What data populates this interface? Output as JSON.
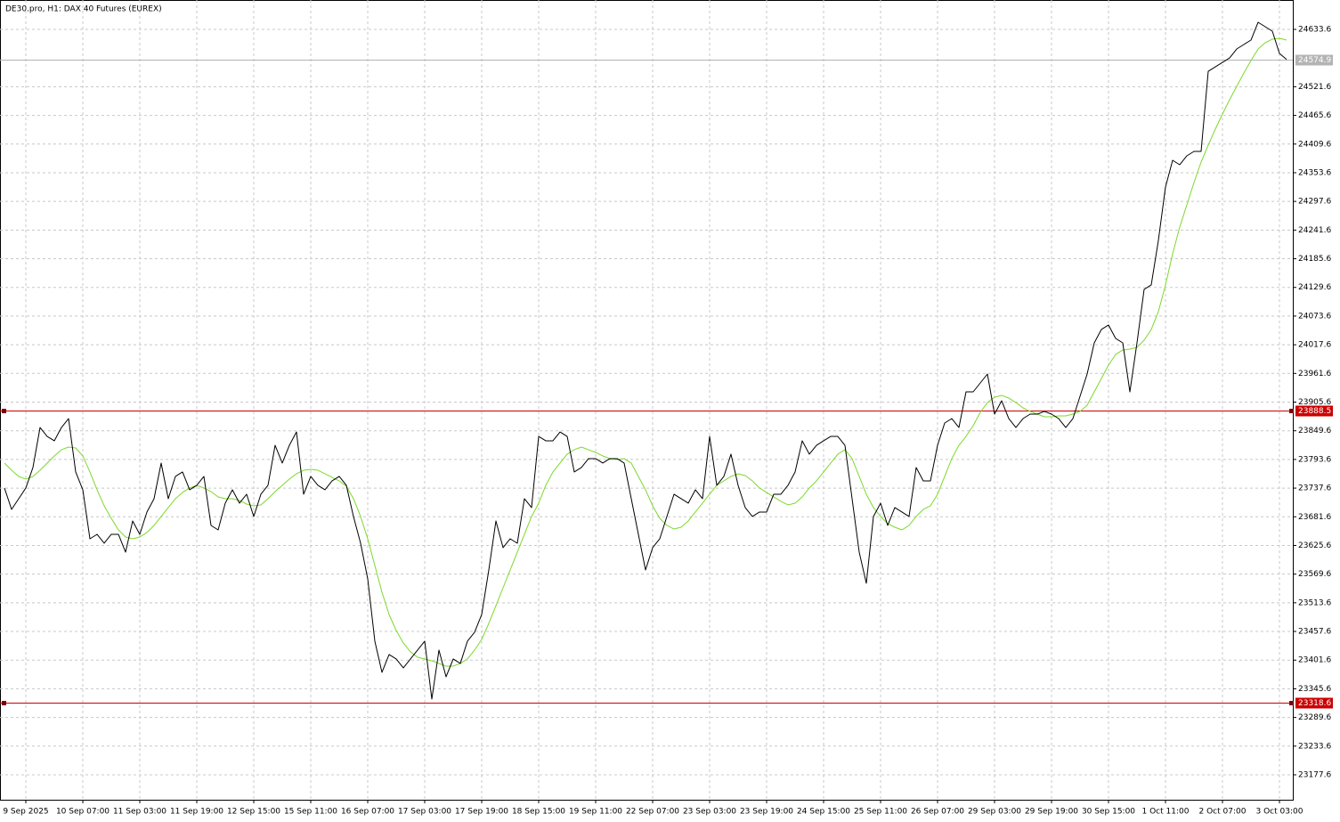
{
  "chart_data": {
    "type": "line",
    "title": "DE30.pro, H1:  DAX 40 Futures (EUREX)",
    "categories": [
      null,
      null,
      null,
      "9 Sep 2025",
      null,
      null,
      null,
      null,
      null,
      null,
      null,
      "10 Sep 07:00",
      null,
      null,
      null,
      null,
      null,
      null,
      null,
      "11 Sep 03:00",
      null,
      null,
      null,
      null,
      null,
      null,
      null,
      "11 Sep 19:00",
      null,
      null,
      null,
      null,
      null,
      null,
      null,
      "12 Sep 15:00",
      null,
      null,
      null,
      null,
      null,
      null,
      null,
      "15 Sep 11:00",
      null,
      null,
      null,
      null,
      null,
      null,
      null,
      "16 Sep 07:00",
      null,
      null,
      null,
      null,
      null,
      null,
      null,
      "17 Sep 03:00",
      null,
      null,
      null,
      null,
      null,
      null,
      null,
      "17 Sep 19:00",
      null,
      null,
      null,
      null,
      null,
      null,
      null,
      "18 Sep 15:00",
      null,
      null,
      null,
      null,
      null,
      null,
      null,
      "19 Sep 11:00",
      null,
      null,
      null,
      null,
      null,
      null,
      null,
      "22 Sep 07:00",
      null,
      null,
      null,
      null,
      null,
      null,
      null,
      "23 Sep 03:00",
      null,
      null,
      null,
      null,
      null,
      null,
      null,
      "23 Sep 19:00",
      null,
      null,
      null,
      null,
      null,
      null,
      null,
      "24 Sep 15:00",
      null,
      null,
      null,
      null,
      null,
      null,
      null,
      "25 Sep 11:00",
      null,
      null,
      null,
      null,
      null,
      null,
      null,
      "26 Sep 07:00",
      null,
      null,
      null,
      null,
      null,
      null,
      null,
      "29 Sep 03:00",
      null,
      null,
      null,
      null,
      null,
      null,
      null,
      "29 Sep 19:00",
      null,
      null,
      null,
      null,
      null,
      null,
      null,
      "30 Sep 15:00",
      null,
      null,
      null,
      null,
      null,
      null,
      null,
      "1 Oct 11:00",
      null,
      null,
      null,
      null,
      null,
      null,
      null,
      "2 Oct 07:00",
      null,
      null,
      null,
      null,
      null,
      null,
      null,
      "3 Oct 03:00",
      null
    ],
    "series": [
      {
        "color": "#000000",
        "values": [
          23737.8,
          23696.0,
          23716.9,
          23737.8,
          23777.8,
          23856.0,
          23838.6,
          23830.0,
          23856.0,
          23873.4,
          23769.1,
          23734.3,
          23638.6,
          23647.3,
          23629.9,
          23647.3,
          23647.3,
          23612.5,
          23673.4,
          23647.3,
          23690.8,
          23716.9,
          23786.5,
          23716.9,
          23760.4,
          23769.1,
          23734.3,
          23743.0,
          23760.4,
          23664.7,
          23656.0,
          23708.2,
          23734.3,
          23708.2,
          23725.6,
          23682.1,
          23725.6,
          23743.0,
          23821.2,
          23786.5,
          23821.2,
          23847.3,
          23725.6,
          23760.4,
          23743.0,
          23734.3,
          23751.7,
          23760.4,
          23743.0,
          23682.1,
          23629.9,
          23560.3,
          23438.6,
          23377.7,
          23412.5,
          23403.8,
          23386.4,
          23403.8,
          23421.2,
          23438.6,
          23325.5,
          23421.2,
          23369.0,
          23403.8,
          23395.1,
          23438.6,
          23456.0,
          23490.7,
          23577.7,
          23673.4,
          23621.2,
          23638.6,
          23629.9,
          23716.9,
          23699.5,
          23838.6,
          23830.0,
          23830.0,
          23847.3,
          23838.6,
          23769.1,
          23777.8,
          23795.2,
          23795.2,
          23786.5,
          23795.2,
          23795.2,
          23786.5,
          23716.9,
          23647.3,
          23577.7,
          23621.2,
          23638.6,
          23682.1,
          23725.6,
          23716.9,
          23708.2,
          23734.3,
          23716.9,
          23838.6,
          23743.0,
          23760.4,
          23803.9,
          23743.0,
          23699.5,
          23682.1,
          23690.8,
          23690.8,
          23725.6,
          23725.6,
          23743.0,
          23769.1,
          23830.0,
          23803.9,
          23821.2,
          23830.0,
          23838.6,
          23838.6,
          23821.2,
          23716.9,
          23612.5,
          23551.6,
          23682.1,
          23708.2,
          23664.7,
          23699.5,
          23690.8,
          23682.1,
          23777.8,
          23751.7,
          23751.7,
          23821.2,
          23864.7,
          23873.4,
          23856.0,
          23925.6,
          23925.6,
          23943.0,
          23960.4,
          23882.1,
          23908.2,
          23873.4,
          23856.0,
          23873.4,
          23882.1,
          23882.1,
          23887.4,
          23882.1,
          23873.4,
          23856.0,
          23873.4,
          23916.9,
          23960.4,
          24021.3,
          24047.4,
          24056.1,
          24030.0,
          24021.3,
          23925.6,
          24021.3,
          24125.7,
          24134.4,
          24221.3,
          24325.7,
          24377.9,
          24369.2,
          24386.6,
          24395.3,
          24395.3,
          24551.8,
          24560.5,
          24569.2,
          24577.9,
          24595.3,
          24604.0,
          24612.7,
          24647.5,
          24638.8,
          24630.1,
          24586.6,
          24574.9
        ]
      },
      {
        "color": "#7cd92a",
        "values": [
          23786.5,
          23772.5,
          23760.4,
          23755.2,
          23760.4,
          23772.5,
          23786.5,
          23800.4,
          23812.6,
          23817.8,
          23816.0,
          23800.4,
          23769.1,
          23734.3,
          23703.0,
          23678.6,
          23656.0,
          23642.1,
          23638.6,
          23642.1,
          23650.8,
          23664.7,
          23682.1,
          23699.5,
          23716.9,
          23729.1,
          23737.8,
          23743.0,
          23737.8,
          23730.8,
          23720.4,
          23716.9,
          23716.9,
          23713.4,
          23706.4,
          23703.0,
          23704.7,
          23716.9,
          23730.8,
          23743.0,
          23755.2,
          23765.6,
          23772.5,
          23774.3,
          23772.5,
          23765.6,
          23758.6,
          23751.7,
          23741.2,
          23716.9,
          23682.1,
          23638.6,
          23586.4,
          23534.2,
          23490.7,
          23459.4,
          23435.1,
          23417.7,
          23407.3,
          23403.8,
          23400.3,
          23395.1,
          23389.9,
          23389.9,
          23395.1,
          23403.8,
          23421.2,
          23442.0,
          23473.4,
          23508.1,
          23542.9,
          23577.7,
          23612.5,
          23647.3,
          23682.1,
          23708.2,
          23743.0,
          23769.1,
          23786.5,
          23803.9,
          23812.6,
          23817.8,
          23812.6,
          23807.3,
          23800.4,
          23795.2,
          23793.4,
          23795.2,
          23786.5,
          23760.4,
          23734.3,
          23703.0,
          23678.6,
          23664.7,
          23657.7,
          23661.2,
          23673.4,
          23690.8,
          23708.2,
          23725.6,
          23743.0,
          23751.7,
          23760.4,
          23765.6,
          23762.1,
          23751.7,
          23737.8,
          23729.1,
          23720.4,
          23711.7,
          23704.7,
          23708.2,
          23720.4,
          23737.8,
          23751.7,
          23769.1,
          23786.5,
          23803.9,
          23812.6,
          23795.2,
          23760.4,
          23725.6,
          23699.5,
          23682.1,
          23668.2,
          23661.2,
          23656.0,
          23664.7,
          23682.1,
          23696.0,
          23703.0,
          23725.6,
          23760.4,
          23795.2,
          23821.2,
          23838.6,
          23859.5,
          23885.6,
          23904.7,
          23915.2,
          23918.7,
          23913.4,
          23904.7,
          23894.3,
          23887.4,
          23882.1,
          23876.9,
          23876.9,
          23878.6,
          23878.6,
          23882.1,
          23887.4,
          23899.5,
          23925.6,
          23951.7,
          23977.8,
          23998.7,
          24007.4,
          24009.1,
          24012.6,
          24026.5,
          24047.4,
          24082.2,
          24134.4,
          24195.2,
          24247.4,
          24290.9,
          24334.4,
          24374.4,
          24407.5,
          24438.8,
          24468.3,
          24496.2,
          24522.3,
          24548.4,
          24572.7,
          24595.3,
          24607.5,
          24614.5,
          24616.2,
          24612.7
        ]
      }
    ],
    "ylim": [
      23128.9,
      24691.0
    ],
    "yticks": [
      23177.6,
      23233.6,
      23289.6,
      23345.6,
      23401.6,
      23457.6,
      23513.6,
      23569.6,
      23625.6,
      23681.6,
      23737.6,
      23793.6,
      23849.6,
      23905.6,
      23961.6,
      24017.6,
      24073.6,
      24129.6,
      24185.6,
      24241.6,
      24297.6,
      24353.6,
      24409.6,
      24465.6,
      24521.6,
      24633.6
    ],
    "hlines": [
      {
        "value": 24574.9,
        "color": "#b4b4b4"
      },
      {
        "value": 23888.5,
        "color": "#cc0000"
      },
      {
        "value": 23318.6,
        "color": "#cc0000"
      }
    ],
    "grid": true
  }
}
